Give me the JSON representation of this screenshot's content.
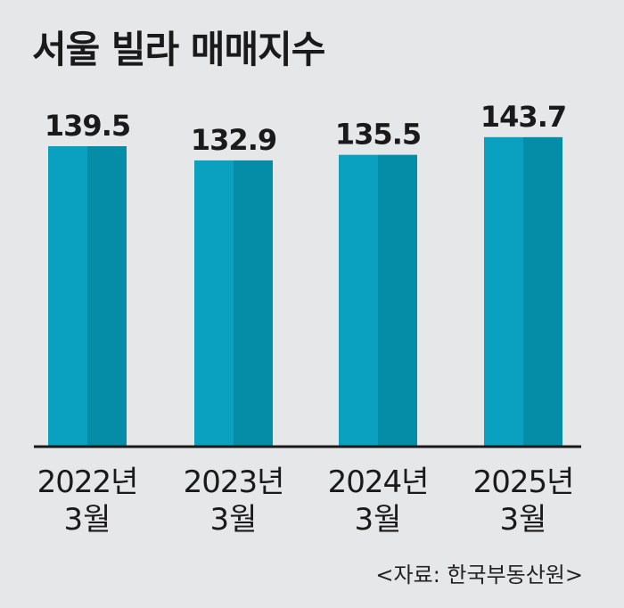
{
  "title": "서울 빌라 매매지수",
  "source": {
    "open": "<",
    "label": "자료: 한국부동산원",
    "close": ">"
  },
  "colors": {
    "background": "#e6e7e8",
    "bar_light": "#0aa1c1",
    "bar_dark": "#058da8",
    "text": "#1a1a1a",
    "baseline": "#1a1a1a"
  },
  "chart_data": {
    "type": "bar",
    "title": "서울 빌라 매매지수",
    "categories": [
      {
        "year": "2022년",
        "month": "3월"
      },
      {
        "year": "2023년",
        "month": "3월"
      },
      {
        "year": "2024년",
        "month": "3월"
      },
      {
        "year": "2025년",
        "month": "3월"
      }
    ],
    "values": [
      139.5,
      132.9,
      135.5,
      143.7
    ],
    "value_labels": [
      "139.5",
      "132.9",
      "135.5",
      "143.7"
    ],
    "xlabel": "",
    "ylabel": "",
    "y_axis_visible": false,
    "baseline_value": 0,
    "grid": false,
    "legend": "none"
  }
}
